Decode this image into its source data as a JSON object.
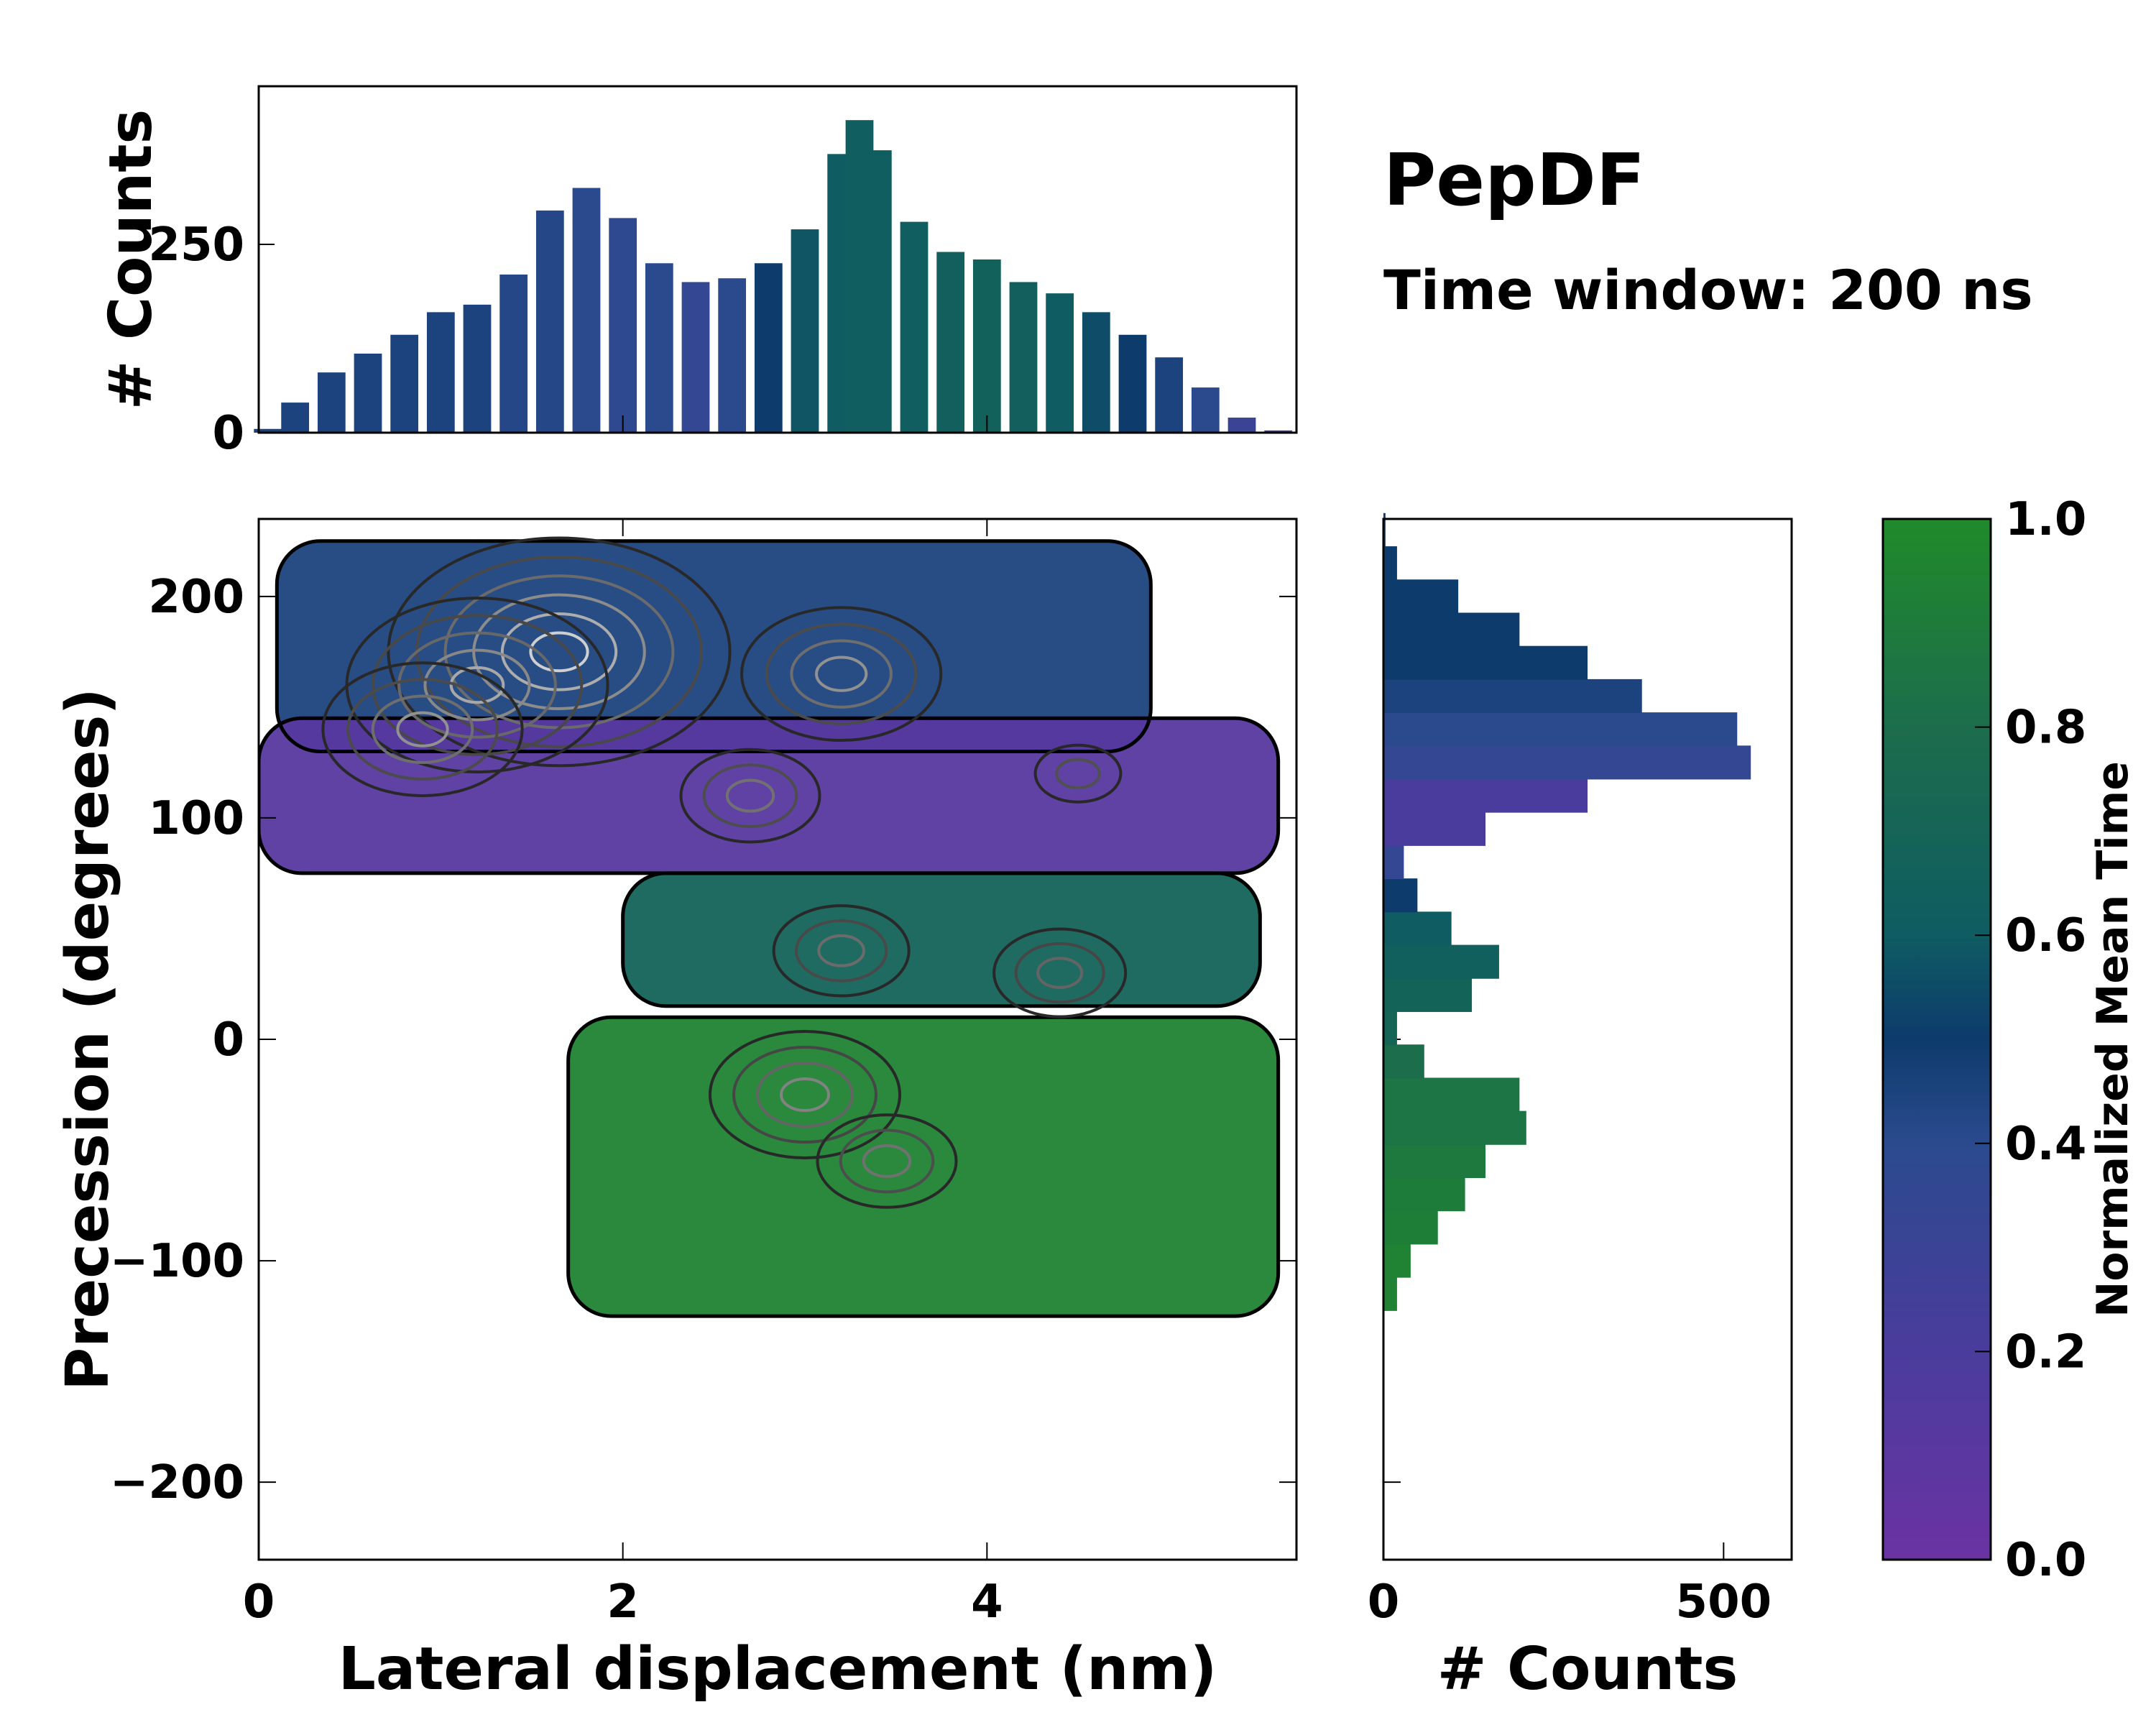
{
  "title": "PepDF",
  "subtitle": "Time window: 200 ns",
  "colors": {
    "c0": "#6a33a3",
    "c02": "#4a3c9c",
    "c04": "#2b4a8e",
    "c05": "#0d3b6c",
    "c06": "#0f5c62",
    "c08": "#1c6d4c",
    "c1": "#208a2a"
  },
  "chart_data": [
    {
      "name": "top-histogram",
      "type": "bar",
      "xlabel": "",
      "ylabel": "# Counts",
      "xlim": [
        0,
        5.7
      ],
      "ylim": [
        0,
        460
      ],
      "yticks": [
        0,
        250
      ],
      "yticklabels": [
        "0",
        "250"
      ],
      "bins_x": [
        0.05,
        0.2,
        0.4,
        0.6,
        0.8,
        1.0,
        1.2,
        1.4,
        1.6,
        1.8,
        2.0,
        2.2,
        2.4,
        2.6,
        2.8,
        3.0,
        3.2,
        3.3,
        3.4,
        3.6,
        3.8,
        4.0,
        4.2,
        4.4,
        4.6,
        4.8,
        5.0,
        5.2,
        5.4,
        5.6
      ],
      "counts": [
        5,
        40,
        80,
        105,
        130,
        160,
        170,
        210,
        295,
        325,
        285,
        225,
        200,
        205,
        225,
        270,
        370,
        415,
        375,
        280,
        240,
        230,
        200,
        185,
        160,
        130,
        100,
        60,
        20,
        3
      ],
      "mean_time": [
        0.45,
        0.45,
        0.45,
        0.45,
        0.45,
        0.45,
        0.45,
        0.42,
        0.42,
        0.4,
        0.38,
        0.4,
        0.35,
        0.4,
        0.5,
        0.58,
        0.6,
        0.62,
        0.62,
        0.62,
        0.64,
        0.66,
        0.64,
        0.6,
        0.55,
        0.5,
        0.45,
        0.4,
        0.3,
        0.2
      ]
    },
    {
      "name": "right-histogram",
      "type": "bar",
      "orientation": "horizontal",
      "xlabel": "# Counts",
      "ylabel": "",
      "xlim": [
        0,
        600
      ],
      "ylim": [
        -235,
        235
      ],
      "xticks": [
        0,
        500
      ],
      "xticklabels": [
        "0",
        "500"
      ],
      "bins_y": [
        -115,
        -100,
        -85,
        -70,
        -55,
        -40,
        -25,
        -10,
        5,
        20,
        35,
        50,
        65,
        80,
        95,
        110,
        125,
        140,
        155,
        170,
        185,
        200,
        215,
        230
      ],
      "counts": [
        20,
        40,
        80,
        120,
        150,
        210,
        200,
        60,
        20,
        130,
        170,
        100,
        50,
        30,
        150,
        300,
        540,
        520,
        380,
        300,
        200,
        110,
        20,
        3
      ],
      "mean_time": [
        0.95,
        0.95,
        0.92,
        0.9,
        0.88,
        0.85,
        0.85,
        0.8,
        0.7,
        0.68,
        0.65,
        0.6,
        0.5,
        0.35,
        0.2,
        0.2,
        0.35,
        0.4,
        0.45,
        0.5,
        0.5,
        0.5,
        0.5,
        0.5
      ]
    },
    {
      "name": "main-2d-density",
      "type": "heatmap",
      "xlabel": "Lateral displacement (nm)",
      "ylabel": "Precession (degrees)",
      "xlim": [
        0,
        5.7
      ],
      "ylim": [
        -235,
        235
      ],
      "xticks": [
        0,
        2,
        4
      ],
      "xticklabels": [
        "0",
        "2",
        "4"
      ],
      "yticks": [
        200,
        100,
        0,
        -100,
        -200
      ],
      "yticklabels": [
        "200",
        "100",
        "0",
        "−100",
        "−200"
      ],
      "regions": [
        {
          "label": "upper blue",
          "mean_time": 0.45,
          "x_range": [
            0.1,
            4.9
          ],
          "y_range": [
            130,
            225
          ]
        },
        {
          "label": "purple band",
          "mean_time": 0.12,
          "x_range": [
            0,
            5.6
          ],
          "y_range": [
            75,
            145
          ]
        },
        {
          "label": "teal band",
          "mean_time": 0.68,
          "x_range": [
            2.0,
            5.5
          ],
          "y_range": [
            15,
            75
          ]
        },
        {
          "label": "green band",
          "mean_time": 0.95,
          "x_range": [
            1.7,
            5.6
          ],
          "y_range": [
            -125,
            10
          ]
        }
      ],
      "density_peaks": [
        {
          "x": 1.65,
          "y": 175,
          "level": 1.0
        },
        {
          "x": 1.2,
          "y": 160,
          "level": 0.8
        },
        {
          "x": 0.9,
          "y": 140,
          "level": 0.7
        },
        {
          "x": 3.2,
          "y": 165,
          "level": 0.7
        },
        {
          "x": 2.7,
          "y": 110,
          "level": 0.55
        },
        {
          "x": 3.0,
          "y": -25,
          "level": 0.6
        },
        {
          "x": 3.45,
          "y": -55,
          "level": 0.55
        },
        {
          "x": 3.2,
          "y": 40,
          "level": 0.5
        },
        {
          "x": 4.4,
          "y": 30,
          "level": 0.45
        },
        {
          "x": 4.5,
          "y": 120,
          "level": 0.4
        }
      ]
    }
  ],
  "colorbar": {
    "label": "Normalized Mean Time",
    "min": 0.0,
    "max": 1.0,
    "ticks": [
      0.0,
      0.2,
      0.4,
      0.6,
      0.8,
      1.0
    ],
    "ticklabels": [
      "0.0",
      "0.2",
      "0.4",
      "0.6",
      "0.8",
      "1.0"
    ]
  }
}
